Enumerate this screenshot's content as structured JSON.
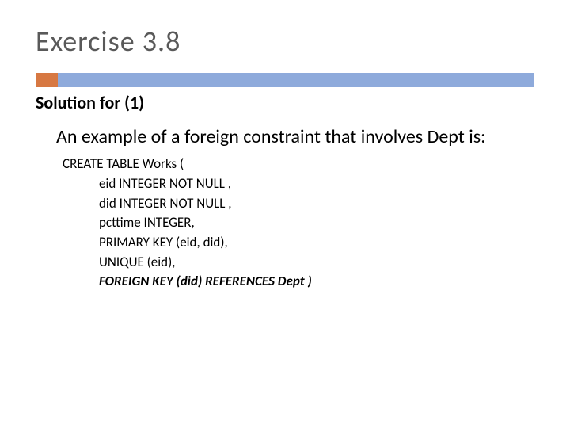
{
  "slide": {
    "title": "Exercise 3.8",
    "subtitle": "Solution for (1)",
    "body": "An example of a foreign constraint that involves Dept is:",
    "code": {
      "line1": "CREATE TABLE Works (",
      "line2": "eid INTEGER NOT NULL ,",
      "line3": "did INTEGER NOT NULL ,",
      "line4": "pcttime INTEGER,",
      "line5": "PRIMARY KEY (eid, did),",
      "line6": "UNIQUE (eid),",
      "line7": "FOREIGN KEY (did) REFERENCES Dept )"
    }
  },
  "colors": {
    "title_color": "#595959",
    "text_color": "#000000",
    "orange_block": "#d77842",
    "blue_line": "#8eaadb",
    "background": "#ffffff"
  },
  "typography": {
    "title_fontsize": 36,
    "subtitle_fontsize": 22,
    "body_fontsize": 24,
    "code_fontsize": 17,
    "font_family": "Gill Sans, Calibri, sans-serif"
  }
}
